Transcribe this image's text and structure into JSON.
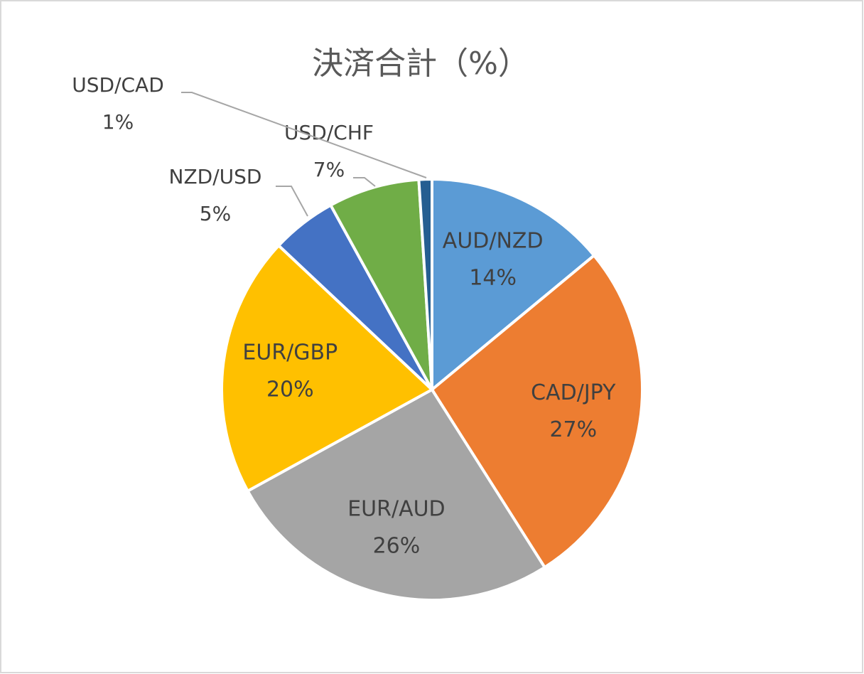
{
  "chart_data": {
    "type": "pie",
    "title": "決済合計（%）",
    "categories": [
      "AUD/NZD",
      "CAD/JPY",
      "EUR/AUD",
      "EUR/GBP",
      "NZD/USD",
      "USD/CHF",
      "USD/CAD"
    ],
    "values": [
      14,
      27,
      26,
      20,
      5,
      7,
      1
    ],
    "value_labels": [
      "14%",
      "27%",
      "26%",
      "20%",
      "5%",
      "7%",
      "1%"
    ],
    "colors": [
      "#5b9bd5",
      "#ed7d31",
      "#a5a5a5",
      "#ffc000",
      "#4472c4",
      "#70ad47",
      "#255e91"
    ]
  }
}
